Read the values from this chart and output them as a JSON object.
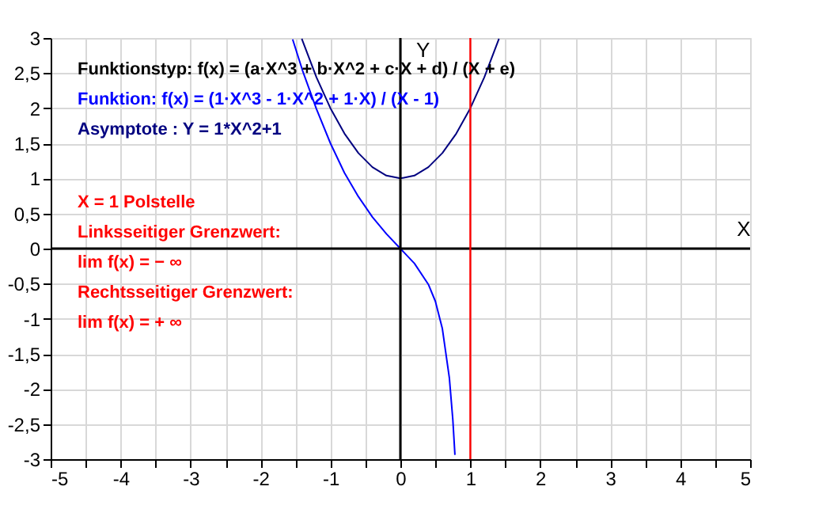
{
  "chart_data": {
    "type": "line",
    "xlabel": "X",
    "ylabel": "Y",
    "xlim": [
      -5,
      5
    ],
    "ylim": [
      -3,
      3
    ],
    "xticks": [
      -5,
      {
        "value": -4.5,
        "label": null
      },
      -4,
      {
        "value": -3.5,
        "label": null
      },
      -3,
      {
        "value": -2.5,
        "label": null
      },
      -2,
      {
        "value": -1.5,
        "label": null
      },
      -1,
      {
        "value": -0.5,
        "label": null
      },
      0,
      {
        "value": 0.5,
        "label": null
      },
      1,
      {
        "value": 1.5,
        "label": null
      },
      2,
      {
        "value": 2.5,
        "label": null
      },
      3,
      {
        "value": 3.5,
        "label": null
      },
      4,
      {
        "value": 4.5,
        "label": null
      },
      5
    ],
    "yticks": [
      -3,
      {
        "value": -2.5,
        "label": "-2,5"
      },
      -2,
      {
        "value": -1.5,
        "label": "-1,5"
      },
      -1,
      {
        "value": -0.5,
        "label": "-0,5"
      },
      0,
      {
        "value": 0.5,
        "label": "0,5"
      },
      1,
      {
        "value": 1.5,
        "label": "1,5"
      },
      2,
      {
        "value": 2.5,
        "label": "2,5"
      },
      3
    ],
    "grid": true,
    "marker": "none",
    "line_style": "solid",
    "series": [
      {
        "color": "#0000ff",
        "x": [
          -1.54,
          -1.4,
          -1.2,
          -1.0,
          -0.8,
          -0.6,
          -0.4,
          -0.2,
          0,
          0.2,
          0.4,
          0.5,
          0.6,
          0.7,
          0.75,
          0.78
        ],
        "values": [
          2.98,
          2.54,
          1.99,
          1.5,
          1.08,
          0.74,
          0.45,
          0.21,
          0,
          -0.21,
          -0.51,
          -0.75,
          -1.14,
          -1.84,
          -2.44,
          -2.94
        ]
      },
      {
        "color": "#000080",
        "x": [
          -1.41,
          -1.2,
          -1.0,
          -0.8,
          -0.6,
          -0.4,
          -0.2,
          0,
          0.2,
          0.4,
          0.6,
          0.8,
          1.0,
          1.2,
          1.41
        ],
        "values": [
          2.99,
          2.44,
          2.0,
          1.64,
          1.36,
          1.16,
          1.04,
          1.0,
          1.04,
          1.16,
          1.36,
          1.64,
          2.0,
          2.44,
          2.99
        ]
      }
    ],
    "ref_lines": [
      {
        "axis": "x",
        "value": 1,
        "color": "#ff0000"
      }
    ],
    "annotations": [
      "Funktionstyp: f(x) = (a·X^3 + b·X^2 + c·X + d) / (X + e)",
      "Funktion: f(x) = (1·X^3 - 1·X^2 + 1·X) / (X - 1)",
      "Asymptote : Y = 1*X^2+1",
      "X = 1 Polstelle",
      "Linksseitiger Grenzwert:",
      "lim f(x) =   − ∞",
      "Rechtsseitiger Grenzwert:",
      "lim f(x) =   + ∞"
    ]
  }
}
